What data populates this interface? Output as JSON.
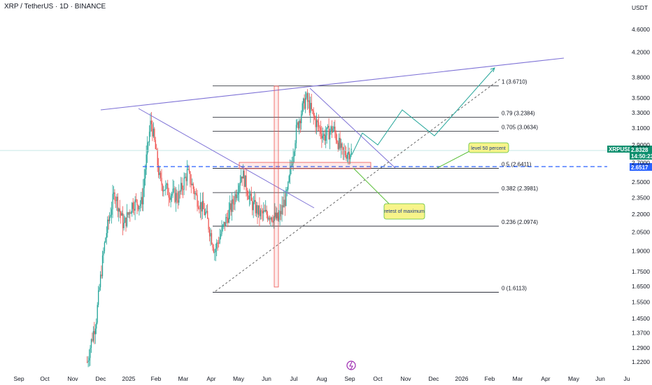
{
  "header": {
    "title": "XRP / TetherUS · 1D · BINANCE"
  },
  "currency": "USDT",
  "colors": {
    "up": "#26a69a",
    "down": "#ef5350",
    "accent": "#2962ff",
    "trend": "#7e72d6",
    "fib": "#131722",
    "green_line": "#26a69a",
    "tag_green": "#0d8f6e",
    "tag_blue": "#2962ff",
    "note_bg": "#f7f48a",
    "note_border": "#5bbf3a"
  },
  "chart_data": {
    "type": "candlestick",
    "y_axis": {
      "min": 1.16,
      "max": 4.75,
      "scale": "log",
      "ticks": [
        "4.6000",
        "4.2000",
        "3.8000",
        "3.5000",
        "3.3000",
        "3.1000",
        "2.9000",
        "2.7000",
        "2.5000",
        "2.3500",
        "2.2000",
        "2.0500",
        "1.9000",
        "1.7500",
        "1.6500",
        "1.5500",
        "1.4500",
        "1.3700",
        "1.2900",
        "1.2200"
      ]
    },
    "x_axis": {
      "ticks": [
        "Sep",
        "Oct",
        "Nov",
        "Dec",
        "2025",
        "Feb",
        "Mar",
        "Apr",
        "May",
        "Jun",
        "Jul",
        "Aug",
        "Sep",
        "Oct",
        "Nov",
        "Dec",
        "2026",
        "Feb",
        "Mar",
        "Apr",
        "May",
        "Jun",
        "Ju"
      ]
    },
    "price_path": [
      [
        1.22,
        1.22
      ],
      [
        1.5,
        1.45
      ],
      [
        2.6,
        2.0
      ],
      [
        2.9,
        2.4
      ],
      [
        2.3,
        2.1
      ],
      [
        2.1,
        2.3
      ],
      [
        2.4,
        2.3
      ],
      [
        3.3,
        3.2
      ],
      [
        2.6,
        2.5
      ],
      [
        2.55,
        2.4
      ],
      [
        2.35,
        2.35
      ],
      [
        2.8,
        2.6
      ],
      [
        2.4,
        2.35
      ],
      [
        2.15,
        2.2
      ],
      [
        1.75,
        1.9
      ],
      [
        2.0,
        2.1
      ],
      [
        2.25,
        2.3
      ],
      [
        2.55,
        2.6
      ],
      [
        2.3,
        2.3
      ],
      [
        2.2,
        2.2
      ],
      [
        2.2,
        2.2
      ],
      [
        2.15,
        2.15
      ],
      [
        2.3,
        2.4
      ],
      [
        2.9,
        3.1
      ],
      [
        3.55,
        3.5
      ],
      [
        3.2,
        3.2
      ],
      [
        2.95,
        3.0
      ],
      [
        3.2,
        3.1
      ],
      [
        2.85,
        2.8
      ],
      [
        2.75,
        2.83
      ]
    ],
    "last_price": {
      "label": "XRPUSDT",
      "value": "2.8328",
      "countdown": "14:50:23"
    },
    "level_tag": "2.6517",
    "fib_levels": [
      {
        "ratio": "1",
        "price": 3.671,
        "label": "1 (3.6710)"
      },
      {
        "ratio": "0.79",
        "price": 3.2384,
        "label": "0.79 (3.2384)"
      },
      {
        "ratio": "0.705",
        "price": 3.0634,
        "label": "0.705 (3.0634)"
      },
      {
        "ratio": "0.5",
        "price": 2.6411,
        "label": "0.5 (2.6411)"
      },
      {
        "ratio": "0.382",
        "price": 2.3981,
        "label": "0.382 (2.3981)"
      },
      {
        "ratio": "0.236",
        "price": 2.0974,
        "label": "0.236 (2.0974)"
      },
      {
        "ratio": "0",
        "price": 1.6113,
        "label": "0 (1.6113)"
      }
    ],
    "annotations": [
      "level 50 percent",
      "retest of maximum"
    ]
  }
}
